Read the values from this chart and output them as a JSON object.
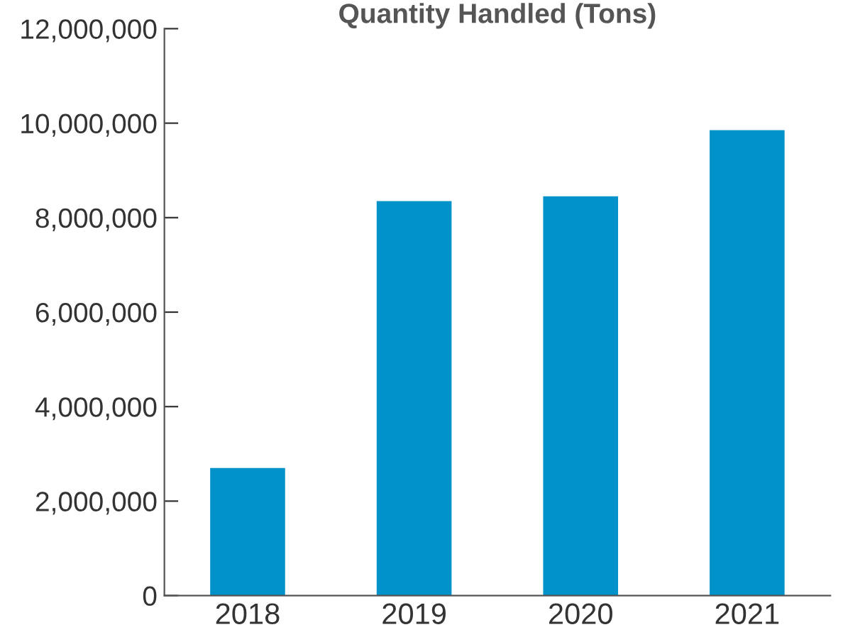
{
  "chart_data": {
    "type": "bar",
    "title": "Quantity Handled (Tons)",
    "categories": [
      "2018",
      "2019",
      "2020",
      "2021"
    ],
    "values": [
      2700000,
      8350000,
      8450000,
      9850000
    ],
    "color": "#0092c8",
    "ylim": [
      0,
      12000000
    ],
    "yticks": [
      {
        "value": 0,
        "label": "0"
      },
      {
        "value": 2000000,
        "label": "2,000,000"
      },
      {
        "value": 4000000,
        "label": "4,000,000"
      },
      {
        "value": 6000000,
        "label": "6,000,000"
      },
      {
        "value": 8000000,
        "label": "8,000,000"
      },
      {
        "value": 10000000,
        "label": "10,000,000"
      },
      {
        "value": 12000000,
        "label": "12,000,000"
      }
    ],
    "grid": false,
    "legend": false
  }
}
